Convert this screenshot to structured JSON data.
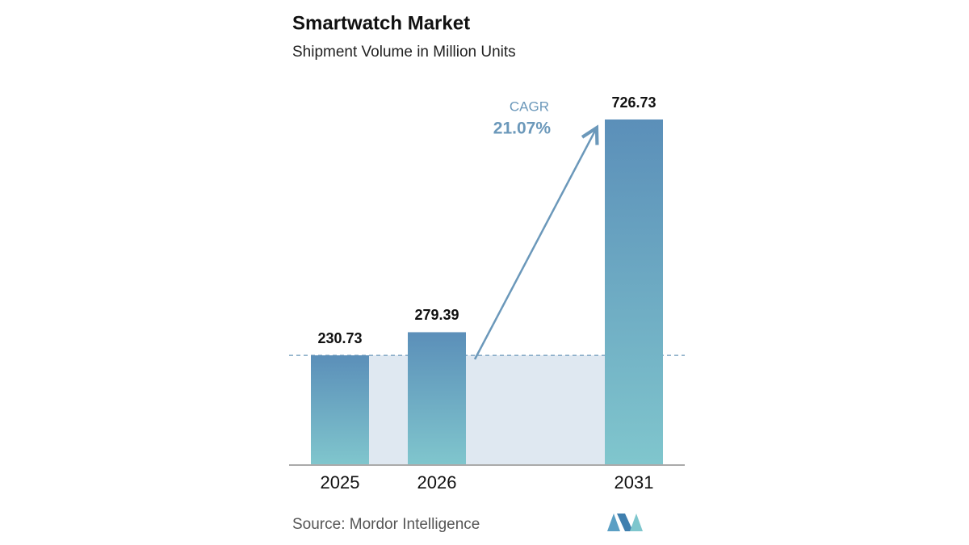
{
  "chart_data": {
    "type": "bar",
    "title": "Smartwatch Market",
    "subtitle": "Shipment Volume in Million Units",
    "categories": [
      "2025",
      "2026",
      "2031"
    ],
    "values": [
      230.73,
      279.39,
      726.73
    ],
    "gradient": [
      "#5b8fb9",
      "#80c6cd"
    ],
    "annotation": {
      "label": "CAGR",
      "value": "21.07%"
    },
    "source": "Source: Mordor Intelligence"
  }
}
